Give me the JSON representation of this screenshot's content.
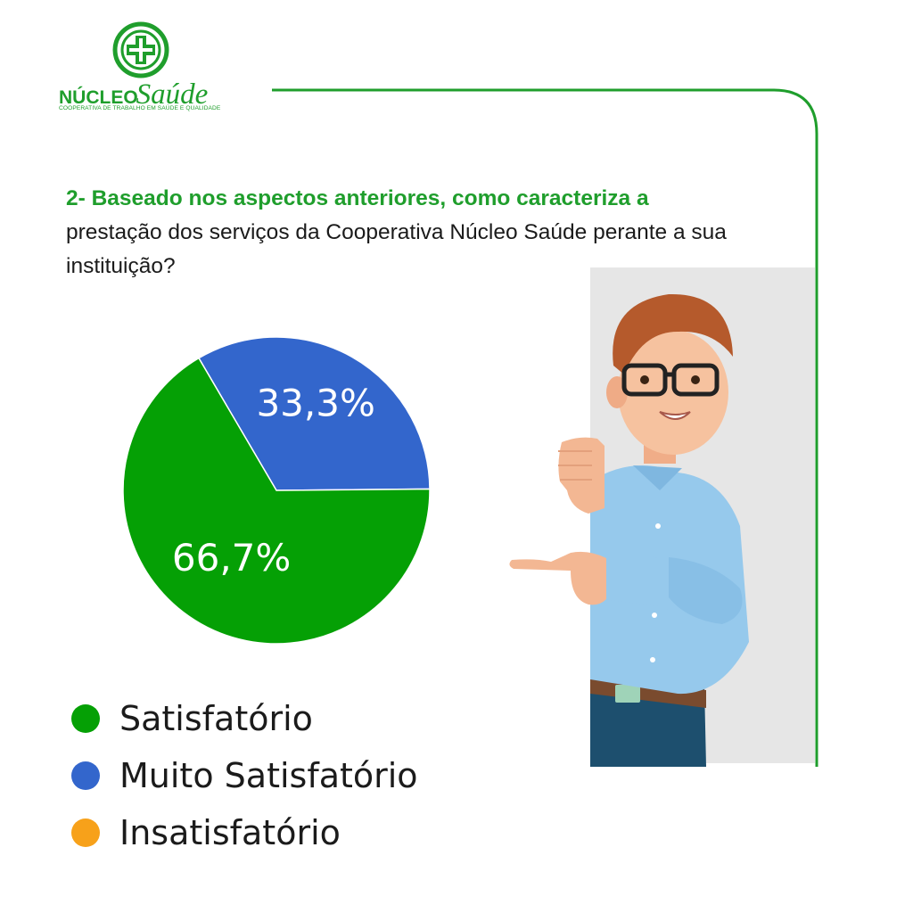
{
  "brand": {
    "word_bold": "NÚCLEO",
    "word_script": "Saúde",
    "tagline": "COOPERATIVA DE TRABALHO EM SAÚDE E QUALIDADE",
    "color": "#1f9e2c"
  },
  "question": {
    "strong": "2- Baseado nos aspectos anteriores, como caracteriza a",
    "rest": "prestação dos serviços da Cooperativa Núcleo Saúde perante a sua instituição?"
  },
  "chart_data": {
    "type": "pie",
    "slices": [
      {
        "label": "Muito Satisfatório",
        "value": 33.3,
        "display": "33,3%",
        "color": "#3366cc"
      },
      {
        "label": "Satisfatório",
        "value": 66.7,
        "display": "66,7%",
        "color": "#05a005"
      },
      {
        "label": "Insatisfatório",
        "value": 0,
        "display": "",
        "color": "#f7a11a"
      }
    ],
    "legend": [
      {
        "label": "Satisfatório",
        "color": "#05a005"
      },
      {
        "label": "Muito Satisfatório",
        "color": "#3366cc"
      },
      {
        "label": "Insatisfatório",
        "color": "#f7a11a"
      }
    ],
    "legend_position": "bottom-left"
  },
  "illustration": {
    "icon": "man-pointing-illustration"
  }
}
